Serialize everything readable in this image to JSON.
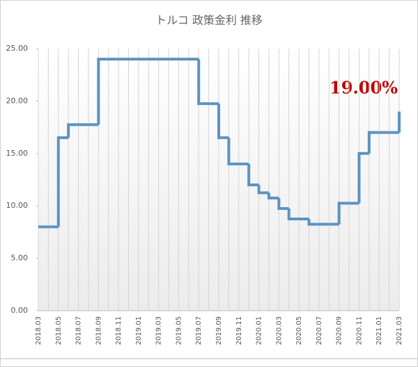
{
  "chart_data": {
    "type": "step-line",
    "title": "トルコ 政策金利 推移",
    "categories": [
      "2018.03",
      null,
      "2018.05",
      null,
      "2018.07",
      null,
      "2018.09",
      null,
      "2018.11",
      null,
      "2019.01",
      null,
      "2019.03",
      null,
      "2019.05",
      null,
      "2019.07",
      null,
      "2019.09",
      null,
      "2019.11",
      null,
      "2020.01",
      null,
      "2020.03",
      null,
      "2020.05",
      null,
      "2020.07",
      null,
      "2020.09",
      null,
      "2020.11",
      null,
      "2021.01",
      null,
      "2021.03"
    ],
    "values": [
      8,
      8,
      16.5,
      17.75,
      17.75,
      17.75,
      24,
      24,
      24,
      24,
      24,
      24,
      24,
      24,
      24,
      24,
      19.75,
      19.75,
      16.5,
      14,
      14,
      12,
      11.25,
      10.75,
      9.75,
      8.75,
      8.75,
      8.25,
      8.25,
      8.25,
      10.25,
      10.25,
      15,
      17,
      17,
      17,
      19
    ],
    "color": "#5b93c2",
    "annotation": "19.00%",
    "annotation_color": "#c00000",
    "ylim": [
      0,
      25
    ],
    "yticks": [
      {
        "value": 0,
        "label": "0.00"
      },
      {
        "value": 5,
        "label": "5.00"
      },
      {
        "value": 10,
        "label": "10.00"
      },
      {
        "value": 15,
        "label": "15.00"
      },
      {
        "value": 20,
        "label": "20.00"
      },
      {
        "value": 25,
        "label": "25.00"
      }
    ],
    "grid": true
  }
}
